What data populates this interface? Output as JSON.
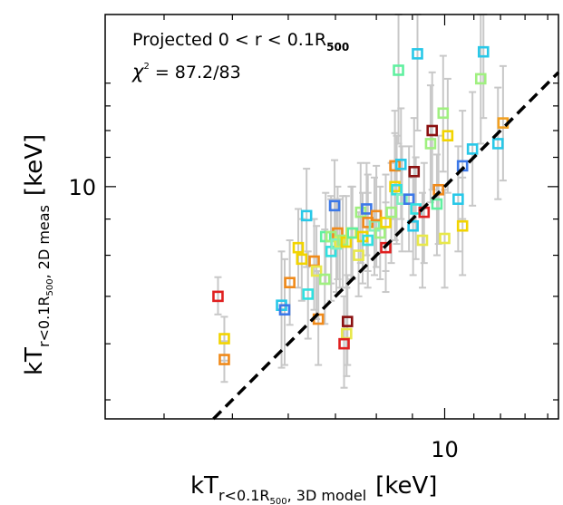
{
  "chart_data": {
    "type": "scatter",
    "scale": {
      "x": "log",
      "y": "log"
    },
    "xlim": [
      3.3,
      14.5
    ],
    "ylim": [
      4.7,
      17.5
    ],
    "xticks": [
      {
        "value": 10,
        "label": "10"
      }
    ],
    "yticks": [
      {
        "value": 10,
        "label": "10"
      }
    ],
    "xlabel": {
      "main": "kT",
      "sub": "r<0.1R",
      "subsub": "500",
      "sub2": ", 3D model",
      "unit": "[keV]"
    },
    "ylabel": {
      "main": "kT",
      "sub": "r<0.1R",
      "subsub": "500",
      "sub2": ", 2D meas",
      "unit": "[keV]"
    },
    "annotations": {
      "line1_prefix": "Projected 0 < r < 0.1R",
      "line1_sub": "500",
      "line2_chi": "χ",
      "line2_sup": "2",
      "line2_rest": " = 87.2/83"
    },
    "reference_line": {
      "type": "1:1",
      "style": "dashed",
      "color": "#000000"
    },
    "errorbar_color": "#c8c8c8",
    "points": [
      {
        "x": 4.77,
        "y": 7.0,
        "ylo": 6.6,
        "yhi": 7.45,
        "color": "#e02020"
      },
      {
        "x": 4.87,
        "y": 6.1,
        "ylo": 5.68,
        "yhi": 6.55,
        "color": "#f2d400"
      },
      {
        "x": 4.87,
        "y": 5.7,
        "ylo": 5.3,
        "yhi": 6.05,
        "color": "#f08a1a"
      },
      {
        "x": 5.87,
        "y": 6.8,
        "ylo": 5.55,
        "yhi": 8.1,
        "color": "#28c8e8"
      },
      {
        "x": 5.93,
        "y": 6.7,
        "ylo": 5.6,
        "yhi": 7.9,
        "color": "#3c78e8"
      },
      {
        "x": 6.03,
        "y": 7.32,
        "ylo": 6.38,
        "yhi": 8.4,
        "color": "#f08a1a"
      },
      {
        "x": 6.2,
        "y": 8.2,
        "ylo": 7.2,
        "yhi": 9.3,
        "color": "#f2d400"
      },
      {
        "x": 6.37,
        "y": 9.1,
        "ylo": 7.7,
        "yhi": 10.6,
        "color": "#28c8e8"
      },
      {
        "x": 6.27,
        "y": 7.9,
        "ylo": 6.9,
        "yhi": 9.0,
        "color": "#f2d400"
      },
      {
        "x": 6.4,
        "y": 7.05,
        "ylo": 6.1,
        "yhi": 8.1,
        "color": "#30e0e0"
      },
      {
        "x": 6.53,
        "y": 7.85,
        "ylo": 6.7,
        "yhi": 9.0,
        "color": "#f08a1a"
      },
      {
        "x": 6.62,
        "y": 6.5,
        "ylo": 5.6,
        "yhi": 7.6,
        "color": "#f08a1a"
      },
      {
        "x": 6.58,
        "y": 7.6,
        "ylo": 6.5,
        "yhi": 8.8,
        "color": "#e8e84a"
      },
      {
        "x": 6.76,
        "y": 7.4,
        "ylo": 6.4,
        "yhi": 8.7,
        "color": "#a0f080"
      },
      {
        "x": 6.78,
        "y": 8.5,
        "ylo": 7.3,
        "yhi": 9.8,
        "color": "#60f0a0"
      },
      {
        "x": 6.9,
        "y": 8.1,
        "ylo": 6.9,
        "yhi": 9.6,
        "color": "#30e0e0"
      },
      {
        "x": 6.98,
        "y": 9.4,
        "ylo": 8.0,
        "yhi": 10.9,
        "color": "#3c78e8"
      },
      {
        "x": 7.05,
        "y": 8.6,
        "ylo": 7.4,
        "yhi": 10.0,
        "color": "#f08a1a"
      },
      {
        "x": 6.9,
        "y": 8.5,
        "ylo": 7.3,
        "yhi": 9.7,
        "color": "#a0f080"
      },
      {
        "x": 7.1,
        "y": 8.35,
        "ylo": 7.2,
        "yhi": 9.6,
        "color": "#e8e84a"
      },
      {
        "x": 7.02,
        "y": 8.3,
        "ylo": 7.1,
        "yhi": 9.6,
        "color": "#80f0c0"
      },
      {
        "x": 7.17,
        "y": 8.4,
        "ylo": 7.2,
        "yhi": 9.7,
        "color": "#a0f080"
      },
      {
        "x": 7.25,
        "y": 8.35,
        "ylo": 7.2,
        "yhi": 9.7,
        "color": "#f2d400"
      },
      {
        "x": 7.37,
        "y": 8.6,
        "ylo": 7.4,
        "yhi": 10.0,
        "color": "#e8e84a"
      },
      {
        "x": 7.28,
        "y": 6.45,
        "ylo": 5.6,
        "yhi": 7.5,
        "color": "#8b1010"
      },
      {
        "x": 7.26,
        "y": 6.2,
        "ylo": 5.4,
        "yhi": 7.2,
        "color": "#e8e84a"
      },
      {
        "x": 7.2,
        "y": 6.0,
        "ylo": 5.2,
        "yhi": 7.0,
        "color": "#e02020"
      },
      {
        "x": 7.4,
        "y": 8.6,
        "ylo": 7.4,
        "yhi": 10.0,
        "color": "#60f0a0"
      },
      {
        "x": 7.55,
        "y": 8.0,
        "ylo": 7.0,
        "yhi": 9.2,
        "color": "#e8e84a"
      },
      {
        "x": 7.6,
        "y": 9.2,
        "ylo": 7.8,
        "yhi": 10.8,
        "color": "#a0f080"
      },
      {
        "x": 7.65,
        "y": 8.5,
        "ylo": 7.3,
        "yhi": 9.8,
        "color": "#f2d400"
      },
      {
        "x": 7.75,
        "y": 9.3,
        "ylo": 8.0,
        "yhi": 10.8,
        "color": "#3c78e8"
      },
      {
        "x": 7.78,
        "y": 8.9,
        "ylo": 7.6,
        "yhi": 10.4,
        "color": "#f08a1a"
      },
      {
        "x": 7.78,
        "y": 8.4,
        "ylo": 7.2,
        "yhi": 9.8,
        "color": "#30e0e0"
      },
      {
        "x": 7.95,
        "y": 8.8,
        "ylo": 7.5,
        "yhi": 10.3,
        "color": "#80f0c0"
      },
      {
        "x": 8.0,
        "y": 9.1,
        "ylo": 7.7,
        "yhi": 10.7,
        "color": "#f08a1a"
      },
      {
        "x": 8.1,
        "y": 8.6,
        "ylo": 7.4,
        "yhi": 10.0,
        "color": "#a0f080"
      },
      {
        "x": 8.25,
        "y": 8.9,
        "ylo": 7.6,
        "yhi": 10.4,
        "color": "#f2d400"
      },
      {
        "x": 8.25,
        "y": 8.2,
        "ylo": 7.1,
        "yhi": 9.5,
        "color": "#e02020"
      },
      {
        "x": 8.4,
        "y": 9.2,
        "ylo": 7.8,
        "yhi": 10.8,
        "color": "#a0f080"
      },
      {
        "x": 8.5,
        "y": 10.7,
        "ylo": 9.0,
        "yhi": 12.8,
        "color": "#f08a1a"
      },
      {
        "x": 8.5,
        "y": 10.0,
        "ylo": 8.4,
        "yhi": 11.9,
        "color": "#f2d400"
      },
      {
        "x": 8.55,
        "y": 9.9,
        "ylo": 8.3,
        "yhi": 11.8,
        "color": "#30e0e0"
      },
      {
        "x": 8.6,
        "y": 14.6,
        "ylo": 11.5,
        "yhi": 17.5,
        "color": "#60f0a0"
      },
      {
        "x": 8.67,
        "y": 10.75,
        "ylo": 9.0,
        "yhi": 12.9,
        "color": "#28c8e8"
      },
      {
        "x": 8.7,
        "y": 9.6,
        "ylo": 8.1,
        "yhi": 11.4,
        "color": "#80f0c0"
      },
      {
        "x": 8.9,
        "y": 9.6,
        "ylo": 8.1,
        "yhi": 11.4,
        "color": "#3c78e8"
      },
      {
        "x": 9.02,
        "y": 8.8,
        "ylo": 7.5,
        "yhi": 10.3,
        "color": "#28c8e8"
      },
      {
        "x": 9.1,
        "y": 9.3,
        "ylo": 7.9,
        "yhi": 11.0,
        "color": "#30e0e0"
      },
      {
        "x": 9.05,
        "y": 10.5,
        "ylo": 8.9,
        "yhi": 12.5,
        "color": "#8b1010"
      },
      {
        "x": 9.15,
        "y": 15.4,
        "ylo": 12.0,
        "yhi": 17.5,
        "color": "#28c8e8"
      },
      {
        "x": 9.3,
        "y": 8.4,
        "ylo": 7.2,
        "yhi": 9.8,
        "color": "#e8e84a"
      },
      {
        "x": 9.35,
        "y": 9.2,
        "ylo": 7.8,
        "yhi": 10.8,
        "color": "#e02020"
      },
      {
        "x": 9.55,
        "y": 11.5,
        "ylo": 9.5,
        "yhi": 13.9,
        "color": "#a0f080"
      },
      {
        "x": 9.6,
        "y": 12.0,
        "ylo": 9.9,
        "yhi": 14.5,
        "color": "#8b1010"
      },
      {
        "x": 9.75,
        "y": 9.45,
        "ylo": 8.0,
        "yhi": 11.1,
        "color": "#60f0a0"
      },
      {
        "x": 9.8,
        "y": 9.9,
        "ylo": 8.3,
        "yhi": 11.8,
        "color": "#f08a1a"
      },
      {
        "x": 9.95,
        "y": 12.7,
        "ylo": 10.5,
        "yhi": 15.3,
        "color": "#a0f080"
      },
      {
        "x": 10.0,
        "y": 8.45,
        "ylo": 7.2,
        "yhi": 9.9,
        "color": "#e8e84a"
      },
      {
        "x": 10.1,
        "y": 11.8,
        "ylo": 9.8,
        "yhi": 14.2,
        "color": "#f2d400"
      },
      {
        "x": 10.45,
        "y": 9.6,
        "ylo": 8.1,
        "yhi": 11.4,
        "color": "#28c8e8"
      },
      {
        "x": 10.6,
        "y": 10.7,
        "ylo": 9.0,
        "yhi": 12.8,
        "color": "#3c78e8"
      },
      {
        "x": 10.6,
        "y": 8.8,
        "ylo": 7.5,
        "yhi": 10.3,
        "color": "#f2d400"
      },
      {
        "x": 10.95,
        "y": 11.3,
        "ylo": 9.4,
        "yhi": 13.6,
        "color": "#28c8e8"
      },
      {
        "x": 11.25,
        "y": 14.2,
        "ylo": 11.5,
        "yhi": 17.5,
        "color": "#a0f080"
      },
      {
        "x": 11.35,
        "y": 15.5,
        "ylo": 12.5,
        "yhi": 17.5,
        "color": "#28c8e8"
      },
      {
        "x": 11.9,
        "y": 11.5,
        "ylo": 9.6,
        "yhi": 13.8,
        "color": "#28c8e8"
      },
      {
        "x": 12.1,
        "y": 12.3,
        "ylo": 10.2,
        "yhi": 14.8,
        "color": "#f2a020"
      }
    ]
  }
}
